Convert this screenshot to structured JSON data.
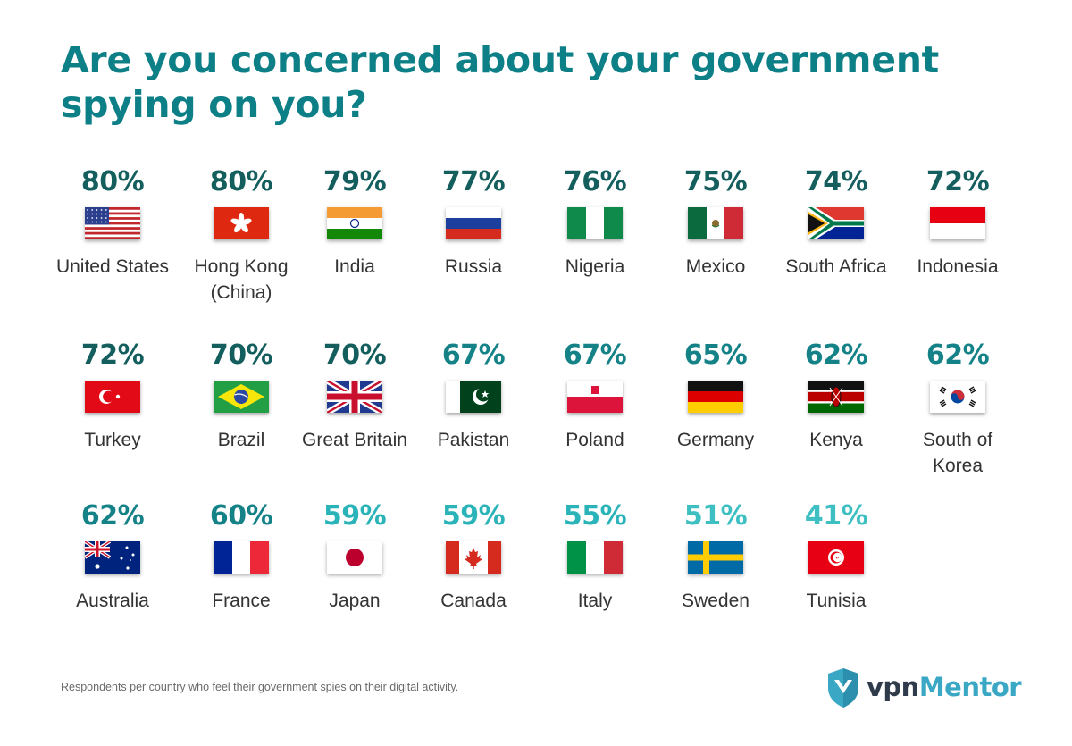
{
  "title": "Are you concerned about your government spying on you?",
  "footnote": "Respondents per country who feel their government spies on their digital activity.",
  "brand": {
    "vpn": "vpn",
    "mentor": "Mentor"
  },
  "colors": {
    "title": "#0d7f86",
    "high": "#145e5e",
    "mid": "#158287",
    "low": "#2ab3b8",
    "lowest": "#3ebfc2"
  },
  "chart_data": {
    "type": "table",
    "title": "Are you concerned about your government spying on you?",
    "unit": "%",
    "categories": [
      "United States",
      "Hong Kong (China)",
      "India",
      "Russia",
      "Nigeria",
      "Mexico",
      "South Africa",
      "Indonesia",
      "Turkey",
      "Brazil",
      "Great Britain",
      "Pakistan",
      "Poland",
      "Germany",
      "Kenya",
      "South of Korea",
      "Australia",
      "France",
      "Japan",
      "Canada",
      "Italy",
      "Sweden",
      "Tunisia"
    ],
    "values": [
      80,
      80,
      79,
      77,
      76,
      75,
      74,
      72,
      72,
      70,
      70,
      67,
      67,
      65,
      62,
      62,
      62,
      60,
      59,
      59,
      55,
      51,
      41
    ]
  },
  "items": [
    {
      "pct": "80%",
      "country": "United States",
      "flag": "us-flag"
    },
    {
      "pct": "80%",
      "country": "Hong Kong (China)",
      "flag": "hk-flag"
    },
    {
      "pct": "79%",
      "country": "India",
      "flag": "in-flag"
    },
    {
      "pct": "77%",
      "country": "Russia",
      "flag": "ru-flag"
    },
    {
      "pct": "76%",
      "country": "Nigeria",
      "flag": "ng-flag"
    },
    {
      "pct": "75%",
      "country": "Mexico",
      "flag": "mx-flag"
    },
    {
      "pct": "74%",
      "country": "South Africa",
      "flag": "za-flag"
    },
    {
      "pct": "72%",
      "country": "Indonesia",
      "flag": "id-flag"
    },
    {
      "pct": "72%",
      "country": "Turkey",
      "flag": "tr-flag"
    },
    {
      "pct": "70%",
      "country": "Brazil",
      "flag": "br-flag"
    },
    {
      "pct": "70%",
      "country": "Great Britain",
      "flag": "gb-flag"
    },
    {
      "pct": "67%",
      "country": "Pakistan",
      "flag": "pk-flag"
    },
    {
      "pct": "67%",
      "country": "Poland",
      "flag": "pl-flag"
    },
    {
      "pct": "65%",
      "country": "Germany",
      "flag": "de-flag"
    },
    {
      "pct": "62%",
      "country": "Kenya",
      "flag": "ke-flag"
    },
    {
      "pct": "62%",
      "country": "South of Korea",
      "flag": "kr-flag"
    },
    {
      "pct": "62%",
      "country": "Australia",
      "flag": "au-flag"
    },
    {
      "pct": "60%",
      "country": "France",
      "flag": "fr-flag"
    },
    {
      "pct": "59%",
      "country": "Japan",
      "flag": "jp-flag"
    },
    {
      "pct": "59%",
      "country": "Canada",
      "flag": "ca-flag"
    },
    {
      "pct": "55%",
      "country": "Italy",
      "flag": "it-flag"
    },
    {
      "pct": "51%",
      "country": "Sweden",
      "flag": "se-flag"
    },
    {
      "pct": "41%",
      "country": "Tunisia",
      "flag": "tn-flag"
    }
  ]
}
